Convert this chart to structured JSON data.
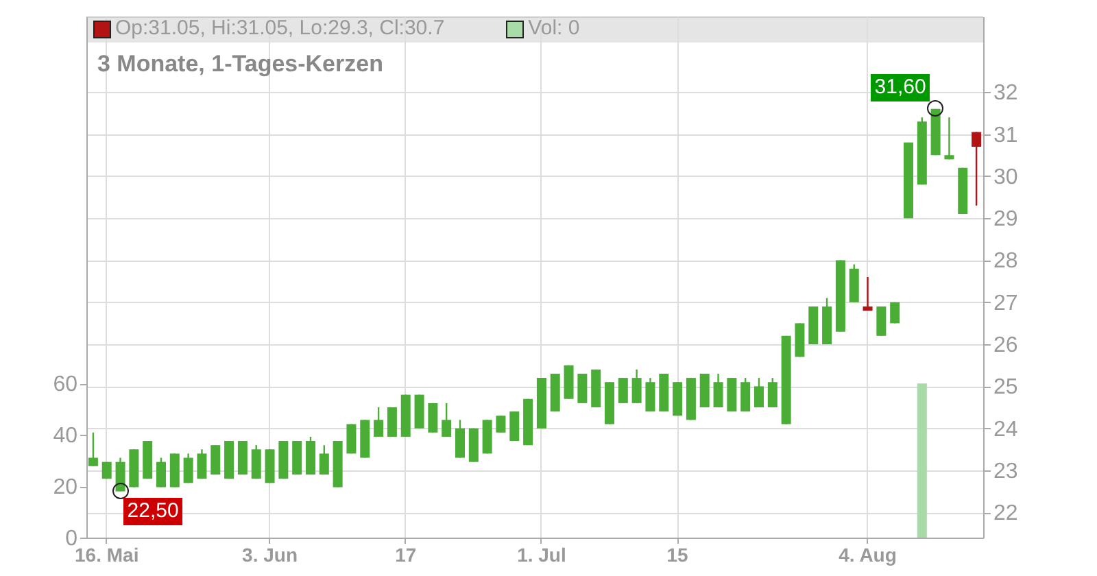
{
  "chart_data": {
    "type": "candlestick",
    "title": "3 Monate, 1-Tages-Kerzen",
    "annotations": [
      "Op:31.05, Hi:31.05, Lo:29.3, Cl:30.7",
      "Vol: 0",
      "22,50",
      "31,60"
    ],
    "categories": [
      null,
      "16. Mai",
      null,
      null,
      null,
      null,
      null,
      null,
      null,
      null,
      null,
      null,
      null,
      "3. Jun",
      null,
      null,
      null,
      null,
      null,
      null,
      null,
      null,
      null,
      "17",
      null,
      null,
      null,
      null,
      null,
      null,
      null,
      null,
      null,
      "1. Jul",
      null,
      null,
      null,
      null,
      null,
      null,
      null,
      null,
      null,
      "15",
      null,
      null,
      null,
      null,
      null,
      null,
      null,
      null,
      null,
      null,
      null,
      null,
      null,
      "4. Aug",
      null,
      null,
      null,
      null,
      null,
      null,
      null,
      null
    ],
    "ohlc": [
      [
        23.1,
        23.9,
        23.1,
        23.3
      ],
      [
        22.8,
        23.2,
        22.8,
        23.2
      ],
      [
        22.5,
        23.3,
        22.5,
        23.2
      ],
      [
        22.6,
        23.5,
        22.6,
        23.5
      ],
      [
        22.8,
        23.7,
        22.8,
        23.7
      ],
      [
        22.6,
        23.3,
        22.6,
        23.2
      ],
      [
        22.6,
        23.4,
        22.6,
        23.4
      ],
      [
        22.7,
        23.4,
        22.7,
        23.3
      ],
      [
        22.8,
        23.5,
        22.8,
        23.4
      ],
      [
        22.9,
        23.6,
        22.9,
        23.6
      ],
      [
        22.8,
        23.7,
        22.8,
        23.7
      ],
      [
        22.9,
        23.7,
        22.9,
        23.7
      ],
      [
        22.8,
        23.6,
        22.8,
        23.5
      ],
      [
        22.7,
        23.5,
        22.7,
        23.5
      ],
      [
        22.8,
        23.7,
        22.8,
        23.7
      ],
      [
        22.9,
        23.7,
        22.9,
        23.7
      ],
      [
        22.9,
        23.8,
        22.9,
        23.7
      ],
      [
        22.9,
        23.6,
        22.9,
        23.4
      ],
      [
        22.6,
        23.7,
        22.6,
        23.7
      ],
      [
        23.4,
        24.1,
        23.4,
        24.1
      ],
      [
        23.3,
        24.2,
        23.3,
        24.2
      ],
      [
        23.8,
        24.5,
        23.8,
        24.2
      ],
      [
        23.8,
        24.5,
        23.8,
        24.5
      ],
      [
        23.8,
        24.8,
        23.8,
        24.8
      ],
      [
        24.0,
        24.8,
        24.0,
        24.8
      ],
      [
        23.9,
        24.6,
        23.9,
        24.6
      ],
      [
        23.8,
        24.6,
        23.8,
        24.2
      ],
      [
        23.3,
        24.2,
        23.3,
        24.0
      ],
      [
        23.2,
        24.0,
        23.2,
        24.0
      ],
      [
        23.4,
        24.2,
        23.4,
        24.2
      ],
      [
        23.9,
        24.3,
        23.9,
        24.3
      ],
      [
        23.7,
        24.4,
        23.7,
        24.4
      ],
      [
        23.6,
        24.7,
        23.6,
        24.7
      ],
      [
        24.0,
        25.2,
        24.0,
        25.2
      ],
      [
        24.4,
        25.3,
        24.4,
        25.3
      ],
      [
        24.7,
        25.5,
        24.7,
        25.5
      ],
      [
        24.6,
        25.3,
        24.6,
        25.3
      ],
      [
        24.5,
        25.4,
        24.5,
        25.4
      ],
      [
        24.1,
        25.1,
        24.1,
        25.1
      ],
      [
        24.6,
        25.2,
        24.6,
        25.2
      ],
      [
        24.6,
        25.4,
        24.6,
        25.2
      ],
      [
        24.4,
        25.2,
        24.4,
        25.1
      ],
      [
        24.4,
        25.3,
        24.4,
        25.3
      ],
      [
        24.3,
        25.1,
        24.3,
        25.1
      ],
      [
        24.2,
        25.2,
        24.2,
        25.2
      ],
      [
        24.5,
        25.3,
        24.5,
        25.3
      ],
      [
        24.5,
        25.3,
        24.5,
        25.1
      ],
      [
        24.4,
        25.2,
        24.4,
        25.2
      ],
      [
        24.4,
        25.2,
        24.4,
        25.1
      ],
      [
        24.5,
        25.2,
        24.5,
        25.0
      ],
      [
        24.5,
        25.2,
        24.5,
        25.1
      ],
      [
        24.1,
        26.2,
        24.1,
        26.2
      ],
      [
        25.7,
        26.5,
        25.7,
        26.5
      ],
      [
        26.0,
        26.9,
        26.0,
        26.9
      ],
      [
        26.0,
        27.1,
        26.0,
        26.9
      ],
      [
        26.3,
        28.0,
        26.3,
        28.0
      ],
      [
        27.0,
        27.9,
        27.0,
        27.8
      ],
      [
        26.9,
        27.6,
        26.8,
        26.8
      ],
      [
        26.2,
        26.9,
        26.2,
        26.9
      ],
      [
        26.5,
        27.0,
        26.5,
        27.0
      ],
      [
        29.0,
        30.8,
        29.0,
        30.8
      ],
      [
        29.8,
        31.4,
        29.8,
        31.3
      ],
      [
        30.5,
        31.6,
        30.5,
        31.6
      ],
      [
        30.4,
        31.4,
        30.4,
        30.5
      ],
      [
        29.1,
        30.2,
        29.1,
        30.2
      ],
      [
        31.05,
        31.05,
        29.3,
        30.7
      ]
    ],
    "colors": [
      "#4aad35",
      "#4aad35",
      "#4aad35",
      "#4aad35",
      "#4aad35",
      "#4aad35",
      "#4aad35",
      "#4aad35",
      "#4aad35",
      "#4aad35",
      "#4aad35",
      "#4aad35",
      "#4aad35",
      "#4aad35",
      "#4aad35",
      "#4aad35",
      "#4aad35",
      "#4aad35",
      "#4aad35",
      "#4aad35",
      "#4aad35",
      "#4aad35",
      "#4aad35",
      "#4aad35",
      "#4aad35",
      "#4aad35",
      "#4aad35",
      "#4aad35",
      "#4aad35",
      "#4aad35",
      "#4aad35",
      "#4aad35",
      "#4aad35",
      "#4aad35",
      "#4aad35",
      "#4aad35",
      "#4aad35",
      "#4aad35",
      "#4aad35",
      "#4aad35",
      "#4aad35",
      "#4aad35",
      "#4aad35",
      "#4aad35",
      "#4aad35",
      "#4aad35",
      "#4aad35",
      "#4aad35",
      "#4aad35",
      "#4aad35",
      "#4aad35",
      "#4aad35",
      "#4aad35",
      "#4aad35",
      "#4aad35",
      "#4aad35",
      "#4aad35",
      "#b31313",
      "#4aad35",
      "#4aad35",
      "#4aad35",
      "#4aad35",
      "#4aad35",
      "#4aad35",
      "#4aad35",
      "#b31313"
    ],
    "series": [
      {
        "type": "bar",
        "axis": "y2",
        "color": "#a8dba8",
        "values": [
          0,
          0,
          0,
          0,
          0,
          0,
          0,
          0,
          0,
          0,
          0,
          0,
          0,
          0,
          0,
          0,
          0,
          0,
          0,
          0,
          0,
          0,
          0,
          0,
          0,
          0,
          0,
          0,
          0,
          0,
          0,
          0,
          0,
          0,
          0,
          0,
          0,
          0,
          0,
          0,
          0,
          0,
          0,
          0,
          0,
          0,
          0,
          0,
          0,
          0,
          0,
          0,
          0,
          0,
          0,
          0,
          0,
          0,
          0,
          0,
          0,
          60,
          0,
          0,
          0,
          0
        ]
      }
    ],
    "ylim": [
      21.4,
      33.8
    ],
    "yticks": [
      22,
      23,
      24,
      25,
      26,
      27,
      28,
      29,
      30,
      31,
      32
    ],
    "y2lim": [
      0,
      203
    ],
    "y2ticks": [
      0,
      20,
      40,
      60
    ],
    "grid": true
  }
}
